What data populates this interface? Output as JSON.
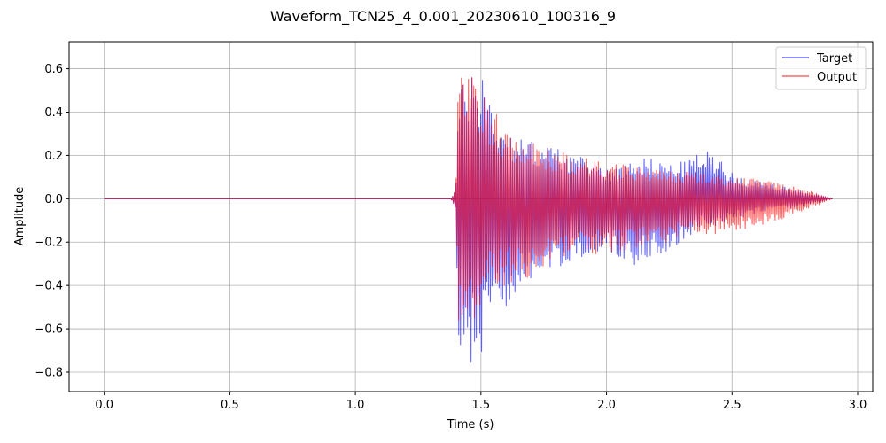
{
  "chart_data": {
    "type": "line",
    "title": "Waveform_TCN25_4_0.001_20230610_100316_9",
    "xlabel": "Time (s)",
    "ylabel": "Amplitude",
    "xlim": [
      -0.14,
      3.06
    ],
    "ylim": [
      -0.89,
      0.725
    ],
    "xticks": [
      0.0,
      0.5,
      1.0,
      1.5,
      2.0,
      2.5,
      3.0
    ],
    "xtick_labels": [
      "0.0",
      "0.5",
      "1.0",
      "1.5",
      "2.0",
      "2.5",
      "3.0"
    ],
    "yticks": [
      -0.8,
      -0.6,
      -0.4,
      -0.2,
      0.0,
      0.2,
      0.4,
      0.6
    ],
    "ytick_labels": [
      "−0.8",
      "−0.6",
      "−0.4",
      "−0.2",
      "0.0",
      "0.2",
      "0.4",
      "0.6"
    ],
    "grid": true,
    "legend_position": "top-right",
    "series": [
      {
        "name": "Target",
        "color": "#0000ff",
        "opacity": 0.6,
        "envelope_x": [
          0.0,
          1.38,
          1.4,
          1.41,
          1.43,
          1.46,
          1.49,
          1.5,
          1.53,
          1.56,
          1.6,
          1.65,
          1.7,
          1.75,
          1.8,
          1.9,
          2.0,
          2.05,
          2.1,
          2.15,
          2.2,
          2.25,
          2.3,
          2.35,
          2.4,
          2.45,
          2.5,
          2.6,
          2.7,
          2.8,
          2.9
        ],
        "envelope_upper": [
          0.0,
          0.0,
          0.05,
          0.45,
          0.55,
          0.62,
          0.55,
          0.65,
          0.5,
          0.38,
          0.32,
          0.28,
          0.27,
          0.25,
          0.24,
          0.19,
          0.15,
          0.14,
          0.2,
          0.19,
          0.18,
          0.16,
          0.17,
          0.2,
          0.22,
          0.2,
          0.12,
          0.08,
          0.06,
          0.03,
          0.0
        ],
        "envelope_lower": [
          0.0,
          0.0,
          -0.05,
          -0.7,
          -0.82,
          -0.8,
          -0.7,
          -0.76,
          -0.55,
          -0.52,
          -0.5,
          -0.45,
          -0.4,
          -0.35,
          -0.32,
          -0.27,
          -0.25,
          -0.27,
          -0.33,
          -0.27,
          -0.26,
          -0.25,
          -0.2,
          -0.15,
          -0.13,
          -0.12,
          -0.1,
          -0.07,
          -0.05,
          -0.03,
          0.0
        ]
      },
      {
        "name": "Output",
        "color": "#ff0000",
        "opacity": 0.6,
        "envelope_x": [
          0.0,
          1.38,
          1.4,
          1.41,
          1.43,
          1.46,
          1.49,
          1.5,
          1.53,
          1.56,
          1.6,
          1.65,
          1.7,
          1.75,
          1.8,
          1.9,
          2.0,
          2.05,
          2.1,
          2.15,
          2.2,
          2.25,
          2.3,
          2.35,
          2.4,
          2.45,
          2.5,
          2.6,
          2.7,
          2.8,
          2.9
        ],
        "envelope_upper": [
          0.0,
          0.0,
          0.05,
          0.62,
          0.62,
          0.58,
          0.52,
          0.48,
          0.45,
          0.4,
          0.3,
          0.27,
          0.26,
          0.24,
          0.22,
          0.19,
          0.17,
          0.16,
          0.15,
          0.14,
          0.14,
          0.13,
          0.13,
          0.12,
          0.12,
          0.11,
          0.1,
          0.09,
          0.07,
          0.04,
          0.0
        ],
        "envelope_lower": [
          0.0,
          0.0,
          -0.05,
          -0.68,
          -0.65,
          -0.58,
          -0.52,
          -0.5,
          -0.42,
          -0.4,
          -0.4,
          -0.38,
          -0.36,
          -0.32,
          -0.3,
          -0.27,
          -0.25,
          -0.24,
          -0.23,
          -0.22,
          -0.21,
          -0.2,
          -0.19,
          -0.18,
          -0.17,
          -0.16,
          -0.15,
          -0.13,
          -0.1,
          -0.05,
          0.0
        ]
      }
    ]
  }
}
